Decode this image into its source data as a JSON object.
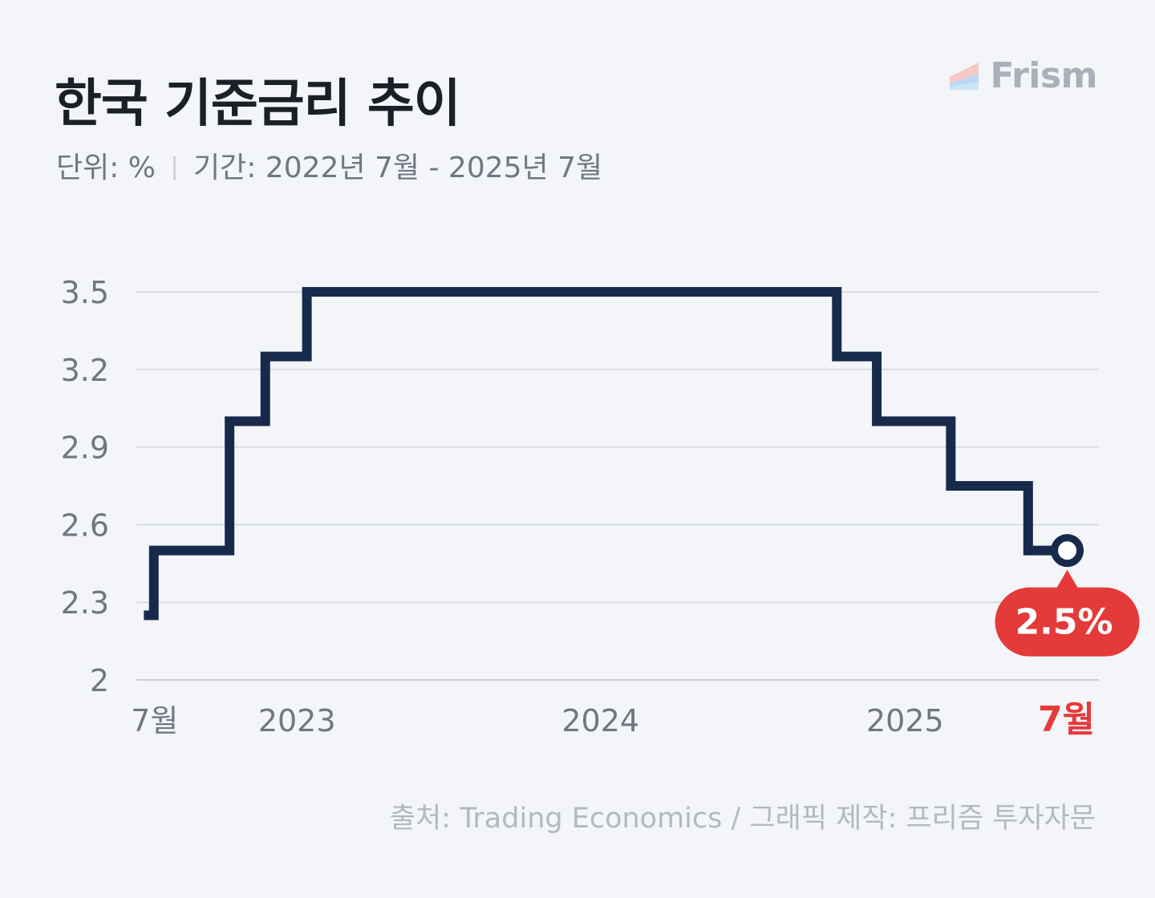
{
  "header": {
    "title": "한국 기준금리 추이",
    "unit": "단위: %",
    "period": "기간: 2022년 7월 - 2025년 7월"
  },
  "brand": {
    "name": "Frism",
    "logo_colors": [
      "#f6c9c4",
      "#b9d7f1",
      "#c9e3f7"
    ]
  },
  "footer": {
    "source": "출처: Trading Economics  / 그래픽 제작: 프리즘 투자자문"
  },
  "colors": {
    "line": "#172a4c",
    "accent": "#e43a3a",
    "grid": "#d8dce2",
    "axis_text": "#6f7782"
  },
  "chart_data": {
    "type": "line",
    "step": true,
    "title": "한국 기준금리 추이",
    "ylim": [
      2,
      3.5
    ],
    "yticks": [
      2,
      2.3,
      2.6,
      2.9,
      3.2,
      3.5
    ],
    "ytick_labels": [
      "2",
      "2.3",
      "2.6",
      "2.9",
      "3.2",
      "3.5"
    ],
    "xlim": [
      "2022-06-22",
      "2025-08-22"
    ],
    "xticks": [
      {
        "x": "2022-07-14",
        "label": "7월",
        "highlight": false
      },
      {
        "x": "2023-01-01",
        "label": "2023",
        "highlight": false
      },
      {
        "x": "2024-01-01",
        "label": "2024",
        "highlight": false
      },
      {
        "x": "2025-01-01",
        "label": "2025",
        "highlight": false
      },
      {
        "x": "2025-07-14",
        "label": "7월",
        "highlight": true
      }
    ],
    "grid": true,
    "series": [
      {
        "points": [
          {
            "x": "2022-07-01",
            "y": 2.25
          },
          {
            "x": "2022-07-13",
            "y": 2.5
          },
          {
            "x": "2022-08-25",
            "y": 2.5
          },
          {
            "x": "2022-10-12",
            "y": 3.0
          },
          {
            "x": "2022-11-24",
            "y": 3.25
          },
          {
            "x": "2023-01-13",
            "y": 3.5
          },
          {
            "x": "2024-10-11",
            "y": 3.25
          },
          {
            "x": "2024-11-28",
            "y": 3.0
          },
          {
            "x": "2025-02-25",
            "y": 2.75
          },
          {
            "x": "2025-05-29",
            "y": 2.5
          },
          {
            "x": "2025-07-15",
            "y": 2.5
          }
        ]
      }
    ],
    "annotation": {
      "label": "2.5%",
      "x": "2025-07-15",
      "y": 2.5
    }
  }
}
